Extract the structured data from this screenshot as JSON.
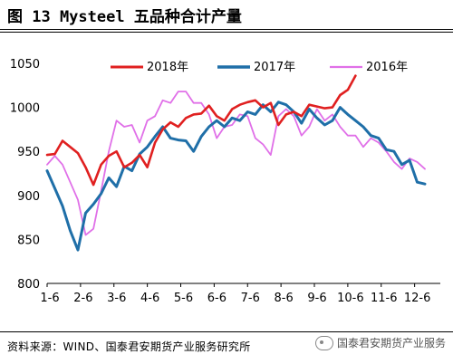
{
  "figure": {
    "title": "图 13   Mysteel 五品种合计产量",
    "source": "资料来源：WIND、国泰君安期货产业服务研究所",
    "watermark": "国泰君安期货产业服务"
  },
  "chart_data": {
    "type": "line",
    "title": "",
    "xlabel": "",
    "ylabel": "",
    "ylim": [
      800,
      1050
    ],
    "yticks": [
      800,
      850,
      900,
      950,
      1000,
      1050
    ],
    "xticks": [
      "1-6",
      "2-6",
      "3-6",
      "4-6",
      "5-6",
      "6-6",
      "7-6",
      "8-6",
      "9-6",
      "10-6",
      "11-6",
      "12-6"
    ],
    "x_unit": "week index (approx. 4.33 weeks per month, week 0 = 1-6)",
    "grid": false,
    "legend": "top",
    "colors": {
      "2018年": "#e02020",
      "2017年": "#1f6fa8",
      "2016年": "#e070e8"
    },
    "series": [
      {
        "name": "2018年",
        "x": [
          0,
          1,
          2,
          3,
          4,
          5,
          6,
          7,
          8,
          9,
          10,
          11,
          12,
          13,
          14,
          15,
          16,
          17,
          18,
          19,
          20,
          21,
          22,
          23,
          24,
          25,
          26,
          27,
          28,
          29,
          30,
          31,
          32,
          33,
          34,
          35,
          36,
          37,
          38,
          39,
          40
        ],
        "values": [
          946,
          947,
          962,
          955,
          948,
          932,
          912,
          935,
          945,
          950,
          932,
          937,
          946,
          932,
          960,
          975,
          983,
          978,
          988,
          992,
          993,
          1002,
          990,
          985,
          998,
          1003,
          1006,
          1008,
          1000,
          1005,
          980,
          992,
          995,
          990,
          1003,
          1001,
          999,
          1000,
          1014,
          1020,
          1036
        ]
      },
      {
        "name": "2017年",
        "x": [
          0,
          1,
          2,
          3,
          4,
          5,
          6,
          7,
          8,
          9,
          10,
          11,
          12,
          13,
          14,
          15,
          16,
          17,
          18,
          19,
          20,
          21,
          22,
          23,
          24,
          25,
          26,
          27,
          28,
          29,
          30,
          31,
          32,
          33,
          34,
          35,
          36,
          37,
          38,
          39,
          40,
          41,
          42,
          43,
          44,
          45,
          46,
          47,
          48,
          49
        ],
        "values": [
          928,
          908,
          888,
          860,
          838,
          880,
          890,
          902,
          920,
          910,
          933,
          928,
          947,
          955,
          967,
          978,
          965,
          963,
          962,
          950,
          967,
          978,
          985,
          978,
          988,
          985,
          995,
          992,
          1003,
          995,
          1006,
          1003,
          995,
          982,
          998,
          988,
          980,
          985,
          1000,
          992,
          985,
          978,
          968,
          965,
          952,
          950,
          935,
          940,
          915,
          913
        ]
      },
      {
        "name": "2016年",
        "x": [
          0,
          1,
          2,
          3,
          4,
          5,
          6,
          7,
          8,
          9,
          10,
          11,
          12,
          13,
          14,
          15,
          16,
          17,
          18,
          19,
          20,
          21,
          22,
          23,
          24,
          25,
          26,
          27,
          28,
          29,
          30,
          31,
          32,
          33,
          34,
          35,
          36,
          37,
          38,
          39,
          40,
          41,
          42,
          43,
          44,
          45,
          46,
          47,
          48,
          49
        ],
        "values": [
          935,
          945,
          935,
          915,
          895,
          855,
          862,
          905,
          950,
          985,
          978,
          980,
          960,
          985,
          990,
          1008,
          1005,
          1018,
          1018,
          1005,
          1005,
          992,
          965,
          978,
          980,
          992,
          990,
          965,
          958,
          946,
          990,
          998,
          990,
          968,
          978,
          998,
          985,
          992,
          978,
          968,
          968,
          955,
          965,
          960,
          950,
          938,
          930,
          942,
          938,
          930
        ]
      }
    ]
  }
}
